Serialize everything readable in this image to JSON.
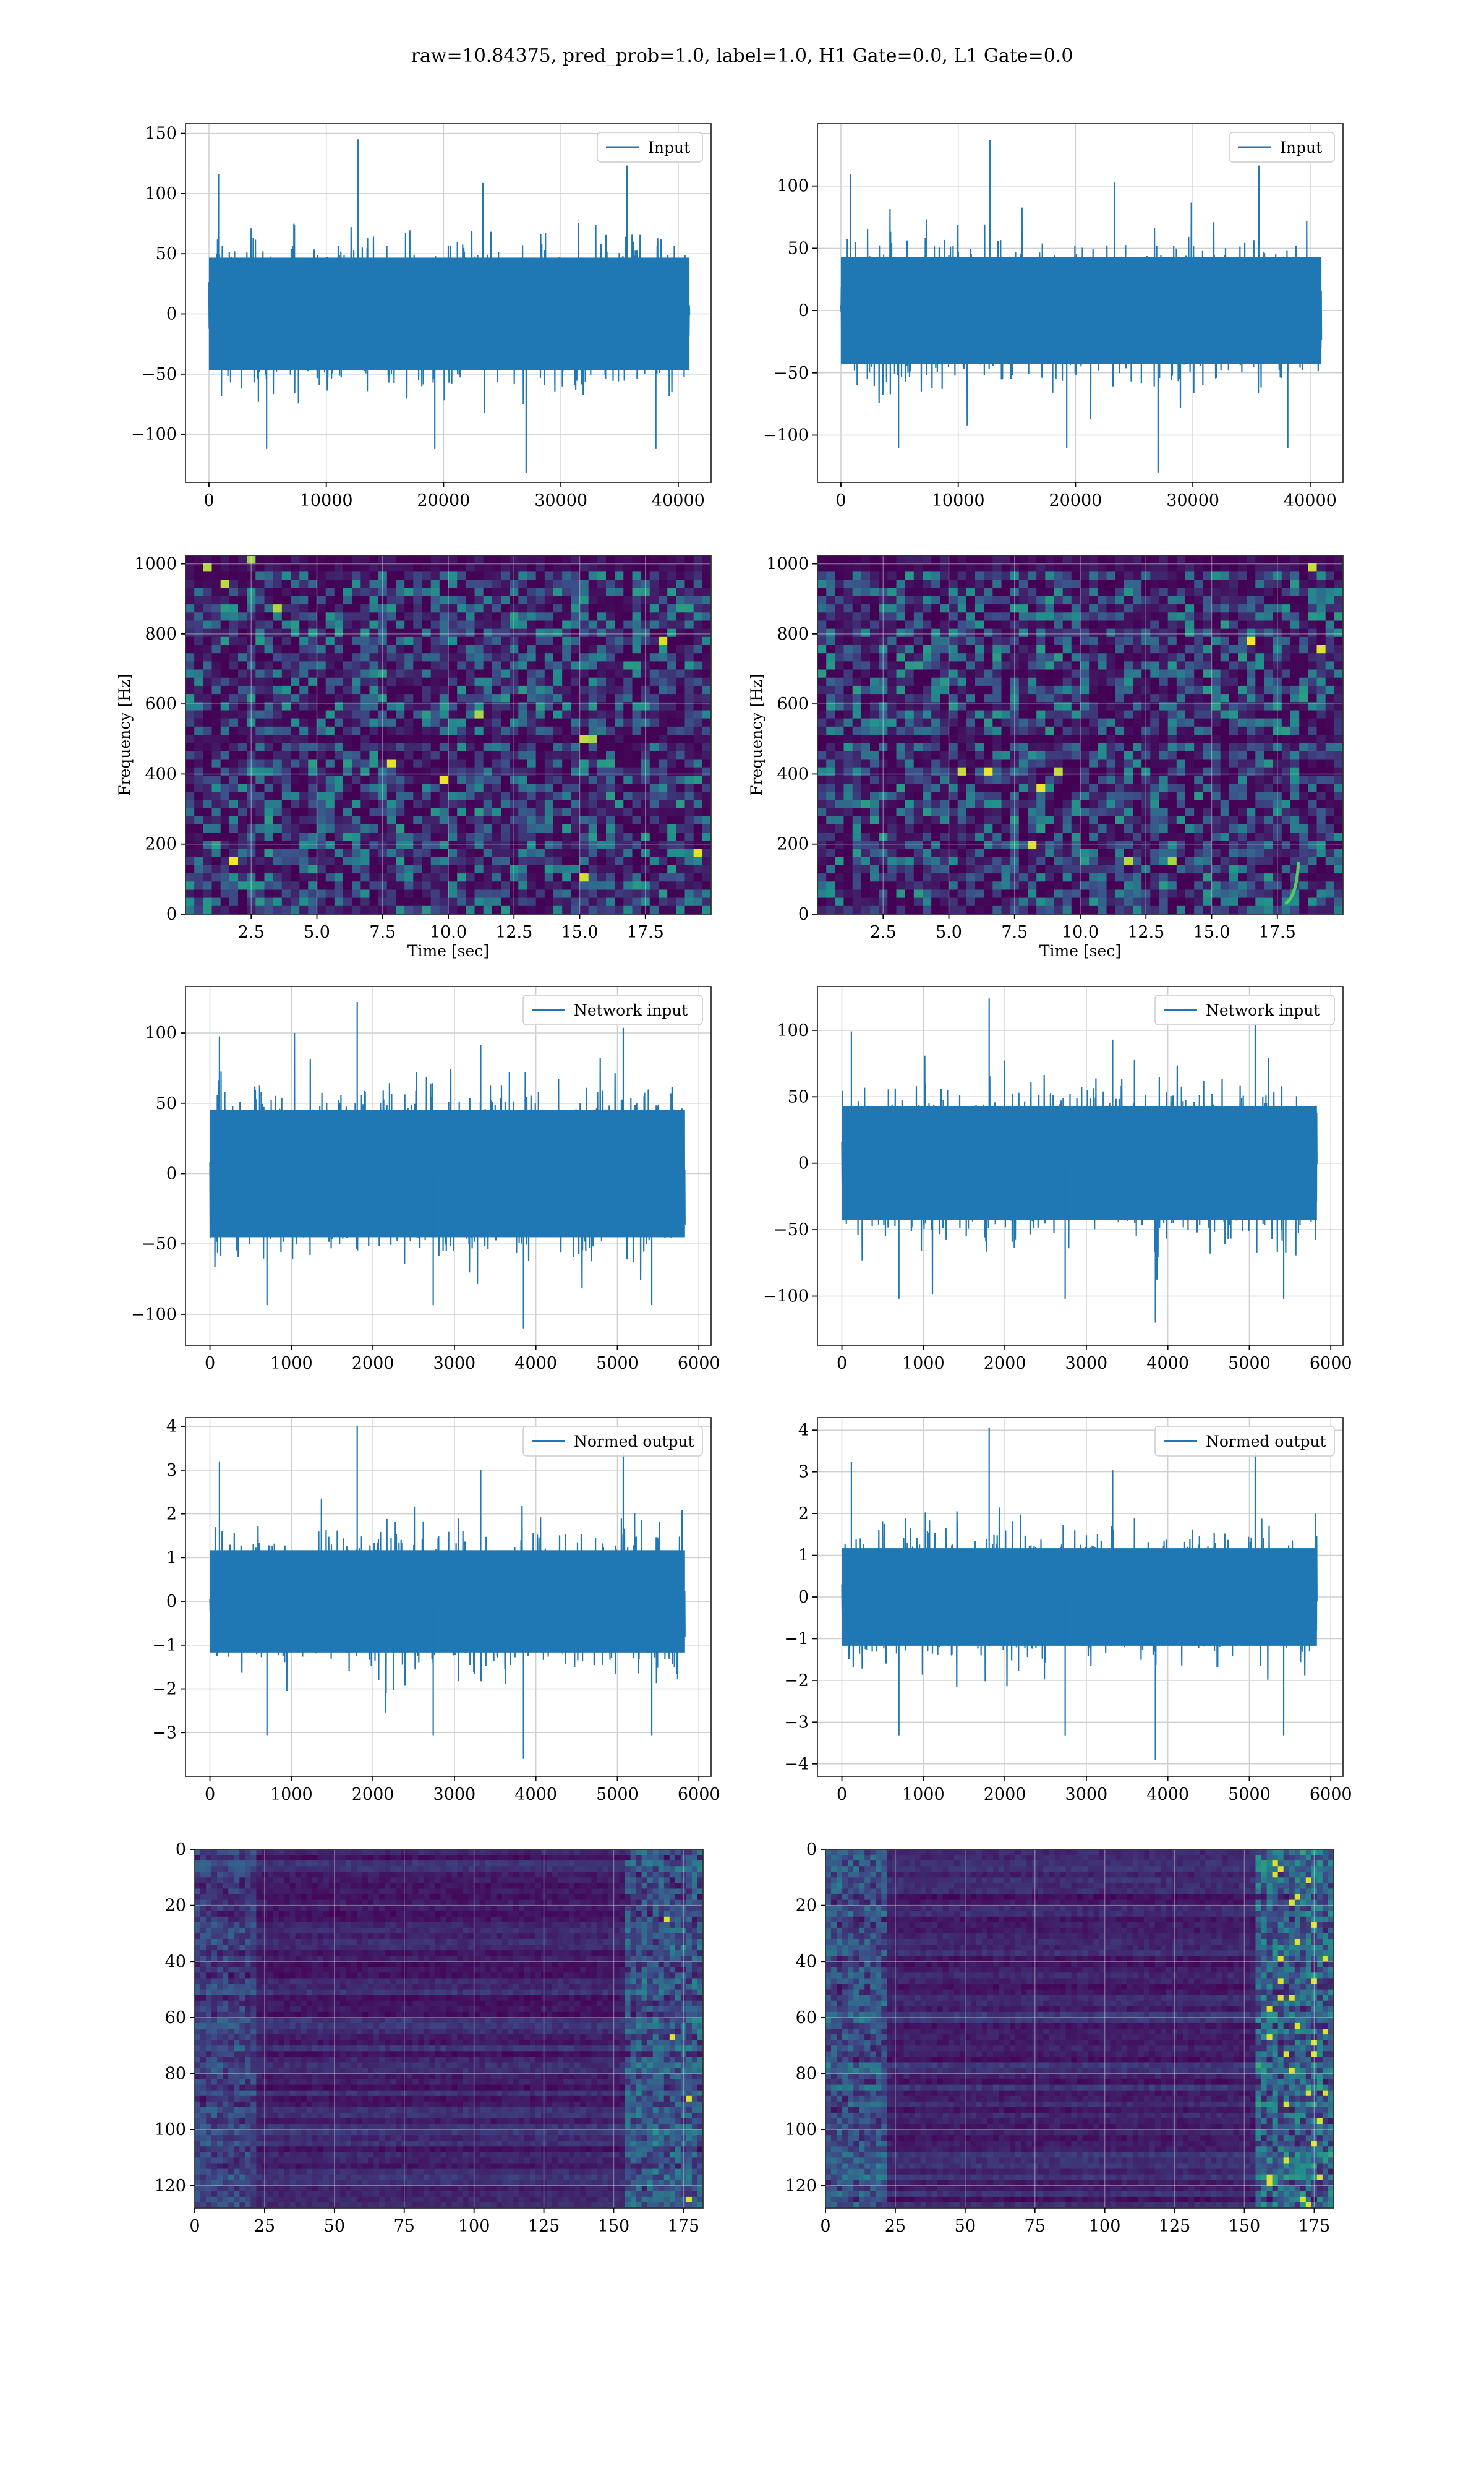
{
  "suptitle": "raw=10.84375, pred_prob=1.0, label=1.0, H1 Gate=0.0, L1 Gate=0.0",
  "colors": {
    "series": "#1f77b4",
    "grid": "#cfcfcf",
    "heat_low": "#440154",
    "heat_mid": "#3b528b",
    "heat_teal": "#21918c",
    "heat_green": "#5ec962",
    "heat_high": "#fde725"
  },
  "chart_data": [
    {
      "id": "h1-input",
      "type": "line",
      "legend": "Input",
      "legend_position": "top-right",
      "grid": true,
      "xlim": [
        -2000,
        42800
      ],
      "ylim": [
        -140,
        158
      ],
      "xticks": [
        0,
        10000,
        20000,
        30000,
        40000
      ],
      "yticks": [
        -100,
        -50,
        0,
        50,
        100,
        150
      ],
      "x_range": [
        0,
        40960
      ],
      "envelope": {
        "typical": 60,
        "max_high": 145,
        "min_low": -132
      }
    },
    {
      "id": "l1-input",
      "type": "line",
      "legend": "Input",
      "legend_position": "top-right",
      "grid": true,
      "xlim": [
        -2000,
        42800
      ],
      "ylim": [
        -138,
        150
      ],
      "xticks": [
        0,
        10000,
        20000,
        30000,
        40000
      ],
      "yticks": [
        -100,
        -50,
        0,
        50,
        100
      ],
      "x_range": [
        0,
        40960
      ],
      "envelope": {
        "typical": 55,
        "max_high": 137,
        "min_low": -130
      }
    },
    {
      "id": "h1-spectrogram",
      "type": "heatmap",
      "xlabel": "Time [sec]",
      "ylabel": "Frequency [Hz]",
      "grid": true,
      "xlim": [
        0,
        20
      ],
      "ylim": [
        0,
        1024
      ],
      "xticks": [
        "2.5",
        "5.0",
        "7.5",
        "10.0",
        "12.5",
        "15.0",
        "17.5"
      ],
      "xtick_values": [
        2.5,
        5,
        7.5,
        10,
        12.5,
        15,
        17.5
      ],
      "yticks": [
        0,
        200,
        400,
        600,
        800,
        1000
      ],
      "dark_bands_hz": [
        500,
        1000
      ]
    },
    {
      "id": "l1-spectrogram",
      "type": "heatmap",
      "xlabel": "Time [sec]",
      "ylabel": "Frequency [Hz]",
      "grid": true,
      "xlim": [
        0,
        20
      ],
      "ylim": [
        0,
        1024
      ],
      "xticks": [
        "2.5",
        "5.0",
        "7.5",
        "10.0",
        "12.5",
        "15.0",
        "17.5"
      ],
      "xtick_values": [
        2.5,
        5,
        7.5,
        10,
        12.5,
        15,
        17.5
      ],
      "yticks": [
        0,
        200,
        400,
        600,
        800,
        1000
      ],
      "dark_bands_hz": [
        500,
        1000
      ],
      "chirp": {
        "t_start": 17.8,
        "t_end": 18.3,
        "f_start": 30,
        "f_end": 150
      }
    },
    {
      "id": "h1-network-input",
      "type": "line",
      "legend": "Network input",
      "legend_position": "top-right",
      "grid": true,
      "xlim": [
        -300,
        6150
      ],
      "ylim": [
        -122,
        133
      ],
      "xticks": [
        0,
        1000,
        2000,
        3000,
        4000,
        5000,
        6000
      ],
      "yticks": [
        -100,
        -50,
        0,
        50,
        100
      ],
      "x_range": [
        0,
        5830
      ],
      "envelope": {
        "typical": 58,
        "max_high": 122,
        "min_low": -110
      }
    },
    {
      "id": "l1-network-input",
      "type": "line",
      "legend": "Network input",
      "legend_position": "top-right",
      "grid": true,
      "xlim": [
        -300,
        6150
      ],
      "ylim": [
        -137,
        133
      ],
      "xticks": [
        0,
        1000,
        2000,
        3000,
        4000,
        5000,
        6000
      ],
      "yticks": [
        -100,
        -50,
        0,
        50,
        100
      ],
      "x_range": [
        0,
        5830
      ],
      "envelope": {
        "typical": 55,
        "max_high": 124,
        "min_low": -120
      }
    },
    {
      "id": "h1-normed-output",
      "type": "line",
      "legend": "Normed output",
      "legend_position": "top-right",
      "grid": true,
      "xlim": [
        -300,
        6150
      ],
      "ylim": [
        -4.0,
        4.2
      ],
      "xticks": [
        0,
        1000,
        2000,
        3000,
        4000,
        5000,
        6000
      ],
      "yticks": [
        -3,
        -2,
        -1,
        0,
        1,
        2,
        3,
        4
      ],
      "x_range": [
        0,
        5830
      ],
      "envelope": {
        "typical": 1.5,
        "max_high": 4.0,
        "min_low": -3.6
      }
    },
    {
      "id": "l1-normed-output",
      "type": "line",
      "legend": "Normed output",
      "legend_position": "top-right",
      "grid": true,
      "xlim": [
        -300,
        6150
      ],
      "ylim": [
        -4.3,
        4.3
      ],
      "xticks": [
        0,
        1000,
        2000,
        3000,
        4000,
        5000,
        6000
      ],
      "yticks": [
        -4,
        -3,
        -2,
        -1,
        0,
        1,
        2,
        3,
        4
      ],
      "x_range": [
        0,
        5830
      ],
      "envelope": {
        "typical": 1.5,
        "max_high": 4.05,
        "min_low": -3.9
      }
    },
    {
      "id": "h1-feature-map",
      "type": "heatmap",
      "grid": true,
      "xlim": [
        0,
        182
      ],
      "ylim": [
        128,
        0
      ],
      "xticks": [
        0,
        25,
        50,
        75,
        100,
        125,
        150,
        175
      ],
      "yticks": [
        0,
        20,
        40,
        60,
        80,
        100,
        120
      ],
      "rows": 128,
      "cols": 182,
      "activity": "right"
    },
    {
      "id": "l1-feature-map",
      "type": "heatmap",
      "grid": true,
      "xlim": [
        0,
        182
      ],
      "ylim": [
        128,
        0
      ],
      "xticks": [
        0,
        25,
        50,
        75,
        100,
        125,
        150,
        175
      ],
      "yticks": [
        0,
        20,
        40,
        60,
        80,
        100,
        120
      ],
      "rows": 128,
      "cols": 182,
      "activity": "both-strong"
    }
  ]
}
